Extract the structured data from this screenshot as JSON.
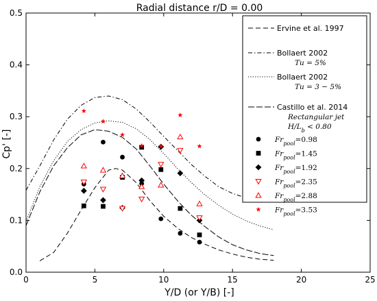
{
  "chart_data": {
    "type": "line",
    "title": "Radial distance r/D = 0.00",
    "xlabel": "Y/D (or Y/B) [-]",
    "ylabel": "Cp' [-]",
    "xlim": [
      0,
      25
    ],
    "ylim": [
      0,
      0.5
    ],
    "xticks": [
      "0",
      "5",
      "10",
      "15",
      "20",
      "25"
    ],
    "yticks": [
      "0.0",
      "0.1",
      "0.2",
      "0.3",
      "0.4",
      "0.5"
    ],
    "grid": false,
    "legend_position": "upper right",
    "line_series": [
      {
        "name": "Ervine et al. 1997",
        "style": "dashed",
        "color": "#000000",
        "x": [
          1,
          2,
          3,
          4,
          5,
          6,
          6.5,
          7,
          8,
          9,
          10,
          11,
          12,
          13,
          14,
          15,
          16,
          17,
          18
        ],
        "y": [
          0.022,
          0.038,
          0.075,
          0.12,
          0.163,
          0.197,
          0.2,
          0.197,
          0.173,
          0.138,
          0.108,
          0.085,
          0.067,
          0.054,
          0.043,
          0.035,
          0.029,
          0.025,
          0.023
        ]
      },
      {
        "name": "Bollaert 2002",
        "sublabel": "Tu = 5%",
        "style": "dashdot",
        "color": "#000000",
        "x": [
          0,
          1,
          2,
          3,
          4,
          5,
          6,
          7,
          8,
          9,
          10,
          11,
          12,
          13,
          14,
          15,
          16,
          17,
          18
        ],
        "y": [
          0.158,
          0.205,
          0.255,
          0.295,
          0.322,
          0.337,
          0.34,
          0.333,
          0.315,
          0.29,
          0.262,
          0.235,
          0.208,
          0.185,
          0.165,
          0.152,
          0.143,
          0.138,
          0.136
        ]
      },
      {
        "name": "Bollaert 2002",
        "sublabel": "Tu = 3 − 5%",
        "style": "dotted",
        "color": "#000000",
        "x": [
          0,
          1,
          2,
          3,
          4,
          5,
          6,
          7,
          8,
          9,
          10,
          11,
          12,
          13,
          14,
          15,
          16,
          17,
          18
        ],
        "y": [
          0.098,
          0.165,
          0.215,
          0.252,
          0.275,
          0.288,
          0.292,
          0.289,
          0.277,
          0.256,
          0.229,
          0.2,
          0.173,
          0.149,
          0.129,
          0.112,
          0.099,
          0.089,
          0.082
        ]
      },
      {
        "name": "Castillo et al. 2014",
        "sublabel": "Rectangular jet",
        "sublabel2": "H/L_b < 0.80",
        "style": "longdash",
        "color": "#000000",
        "x": [
          0,
          1,
          2,
          3,
          4,
          5,
          6,
          7,
          8,
          9,
          10,
          11,
          12,
          13,
          14,
          15,
          16,
          17,
          18
        ],
        "y": [
          0.09,
          0.155,
          0.205,
          0.24,
          0.265,
          0.275,
          0.272,
          0.26,
          0.238,
          0.205,
          0.17,
          0.138,
          0.11,
          0.088,
          0.068,
          0.053,
          0.043,
          0.036,
          0.032
        ]
      }
    ],
    "scatter_series": [
      {
        "name": "Fr_pool = 0.98",
        "marker": "circle",
        "color": "#000000",
        "x": [
          4.2,
          5.6,
          7.0,
          8.4,
          9.8,
          11.2,
          12.6
        ],
        "y": [
          0.17,
          0.251,
          0.222,
          0.171,
          0.103,
          0.075,
          0.058
        ]
      },
      {
        "name": "Fr_pool = 1.45",
        "marker": "square",
        "color": "#000000",
        "x": [
          4.2,
          5.6,
          7.0,
          8.4,
          9.8,
          11.2,
          12.6
        ],
        "y": [
          0.128,
          0.127,
          0.183,
          0.241,
          0.198,
          0.123,
          0.072
        ]
      },
      {
        "name": "Fr_pool = 1.92",
        "marker": "diamond",
        "color": "#000000",
        "x": [
          4.2,
          5.6,
          7.0,
          8.4,
          9.8,
          11.2,
          12.6
        ],
        "y": [
          0.157,
          0.139,
          0.124,
          0.177,
          0.242,
          0.191,
          0.1
        ]
      },
      {
        "name": "Fr_pool = 2.35",
        "marker": "triangle-down-open",
        "color": "#ff0000",
        "x": [
          4.2,
          5.6,
          7.0,
          8.4,
          9.8,
          11.2,
          12.6
        ],
        "y": [
          0.174,
          0.16,
          0.123,
          0.141,
          0.208,
          0.235,
          0.105
        ]
      },
      {
        "name": "Fr_pool = 2.88",
        "marker": "triangle-up-open",
        "color": "#ff0000",
        "x": [
          4.2,
          5.6,
          7.0,
          8.4,
          9.8,
          11.2,
          12.6
        ],
        "y": [
          0.205,
          0.197,
          0.186,
          0.165,
          0.168,
          0.261,
          0.132
        ]
      },
      {
        "name": "Fr_pool = 3.53",
        "marker": "star",
        "color": "#ff0000",
        "x": [
          4.2,
          5.6,
          7.0,
          8.4,
          9.8,
          11.2,
          12.6
        ],
        "y": [
          0.311,
          0.291,
          0.265,
          0.244,
          0.243,
          0.303,
          0.243
        ]
      }
    ]
  }
}
